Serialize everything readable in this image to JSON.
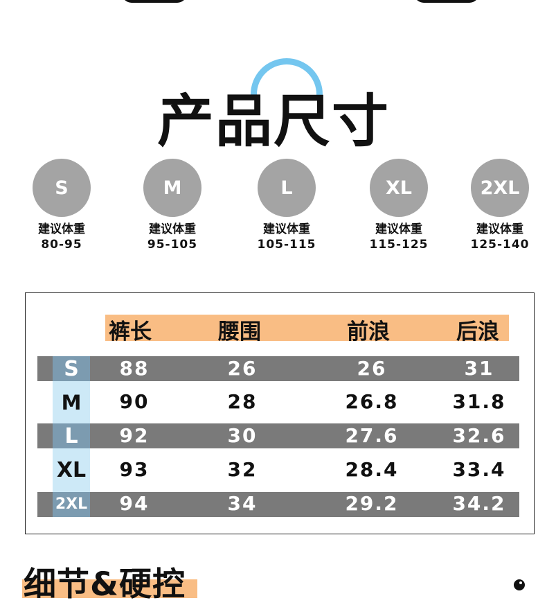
{
  "title": "产品尺寸",
  "recommend_label": "建议体重",
  "sizes": [
    {
      "name": "S",
      "weight": "80-95"
    },
    {
      "name": "M",
      "weight": "95-105"
    },
    {
      "name": "L",
      "weight": "105-115"
    },
    {
      "name": "XL",
      "weight": "115-125"
    },
    {
      "name": "2XL",
      "weight": "125-140"
    }
  ],
  "table": {
    "headers": [
      "裤长",
      "腰围",
      "前浪",
      "后浪"
    ],
    "rows": [
      {
        "size": "S",
        "values": [
          "88",
          "26",
          "26",
          "31"
        ]
      },
      {
        "size": "M",
        "values": [
          "90",
          "28",
          "26.8",
          "31.8"
        ]
      },
      {
        "size": "L",
        "values": [
          "92",
          "30",
          "27.6",
          "32.6"
        ]
      },
      {
        "size": "XL",
        "values": [
          "93",
          "32",
          "28.4",
          "33.4"
        ]
      },
      {
        "size": "2XL",
        "values": [
          "94",
          "34",
          "29.2",
          "34.2"
        ]
      }
    ]
  },
  "detail_title": "细节&硬控",
  "colors": {
    "accent_orange": "#f9bd84",
    "accent_blue": "#74c6ef",
    "size_circle": "#a4a4a4",
    "row_dark": "#7a7a7a"
  }
}
